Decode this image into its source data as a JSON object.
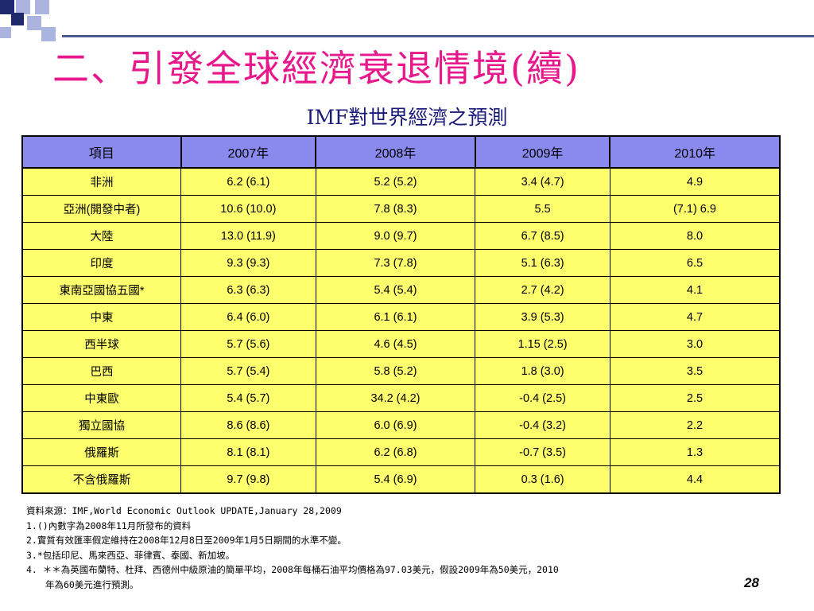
{
  "slide": {
    "title": "二、引發全球經濟衰退情境(續)",
    "subtitle": "IMF對世界經濟之預測",
    "page_number": "28"
  },
  "table": {
    "headers": [
      "項目",
      "2007年",
      "2008年",
      "2009年",
      "2010年"
    ],
    "rows": [
      [
        "非洲",
        "6.2 (6.1)",
        "5.2 (5.2)",
        "3.4 (4.7)",
        "4.9"
      ],
      [
        "亞洲(開發中者)",
        "10.6 (10.0)",
        "7.8 (8.3)",
        "5.5",
        "(7.1) 6.9"
      ],
      [
        "大陸",
        "13.0 (11.9)",
        "9.0 (9.7)",
        "6.7 (8.5)",
        "8.0"
      ],
      [
        "印度",
        "9.3 (9.3)",
        "7.3 (7.8)",
        "5.1 (6.3)",
        "6.5"
      ],
      [
        "東南亞國協五國*",
        "6.3 (6.3)",
        "5.4 (5.4)",
        "2.7 (4.2)",
        "4.1"
      ],
      [
        "中東",
        "6.4 (6.0)",
        "6.1 (6.1)",
        "3.9 (5.3)",
        "4.7"
      ],
      [
        "西半球",
        "5.7 (5.6)",
        "4.6 (4.5)",
        "1.15 (2.5)",
        "3.0"
      ],
      [
        "巴西",
        "5.7 (5.4)",
        "5.8 (5.2)",
        "1.8 (3.0)",
        "3.5"
      ],
      [
        "中東歐",
        "5.4 (5.7)",
        "34.2 (4.2)",
        "-0.4 (2.5)",
        "2.5"
      ],
      [
        "獨立國協",
        "8.6 (8.6)",
        "6.0 (6.9)",
        "-0.4 (3.2)",
        "2.2"
      ],
      [
        "俄羅斯",
        "8.1 (8.1)",
        "6.2 (6.8)",
        "-0.7 (3.5)",
        "1.3"
      ],
      [
        "不含俄羅斯",
        "9.7 (9.8)",
        "5.4 (6.9)",
        "0.3 (1.6)",
        "4.4"
      ]
    ]
  },
  "notes": {
    "source": "資料來源：IMF,World Economic Outlook UPDATE,January 28,2009",
    "n1": "1.()內數字為2008年11月所發布的資料",
    "n2": "2.實質有效匯率假定維持在2008年12月8日至2009年1月5日期間的水準不變。",
    "n3": "3.*包括印尼、馬來西亞、菲律賓、泰國、新加坡。",
    "n4a": "4. ＊＊為英國布蘭特、杜拜、西德州中級原油的簡單平均，2008年每桶石油平均價格為97.03美元，假設2009年為50美元，2010",
    "n4b": "年為60美元進行預測。"
  },
  "colors": {
    "title": "#e8188c",
    "subtitle": "#1a1a7a",
    "header_bg": "#8a8aee",
    "cell_bg": "#ffff6e",
    "deco_dark": "#1f2a6e",
    "deco_light": "#aab4de"
  }
}
